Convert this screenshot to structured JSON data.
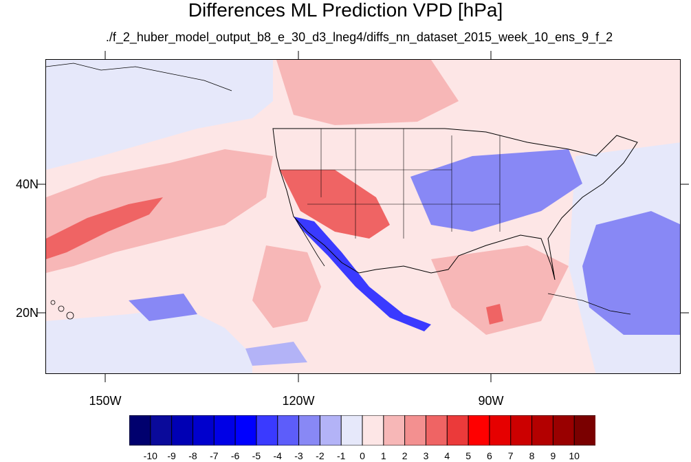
{
  "title": "Differences ML Prediction VPD [hPa]",
  "subtitle": "./f_2_huber_model_output_b8_e_30_d3_lneg4/diffs_nn_dataset_2015_week_10_ens_9_f_2",
  "axes": {
    "lon_labels": [
      "150W",
      "120W",
      "90W"
    ],
    "lat_labels": [
      "40N",
      "20N"
    ]
  },
  "colorbar": {
    "labels": [
      "-10",
      "-9",
      "-8",
      "-7",
      "-6",
      "-5",
      "-4",
      "-3",
      "-2",
      "-1",
      "0",
      "1",
      "2",
      "3",
      "4",
      "5",
      "6",
      "7",
      "8",
      "9",
      "10"
    ],
    "colors": [
      "#00006e",
      "#0a0a9a",
      "#0000b4",
      "#0000cd",
      "#0000e6",
      "#0000ff",
      "#3a3aff",
      "#5d5dfa",
      "#8888f5",
      "#b3b3f7",
      "#e6e8fa",
      "#fde6e6",
      "#f7b7b7",
      "#f39090",
      "#ef6464",
      "#eb3a3a",
      "#ff0000",
      "#e60000",
      "#cc0000",
      "#b30000",
      "#990000",
      "#7a0000"
    ]
  },
  "colors": {
    "land_outline": "#000000",
    "ocean_neutral": "#e6e8fa",
    "positive_light": "#fde6e6",
    "positive_mid": "#f7b7b7",
    "positive_strong": "#ef6464",
    "negative_mid": "#8888f5",
    "negative_strong": "#3a3aff"
  }
}
